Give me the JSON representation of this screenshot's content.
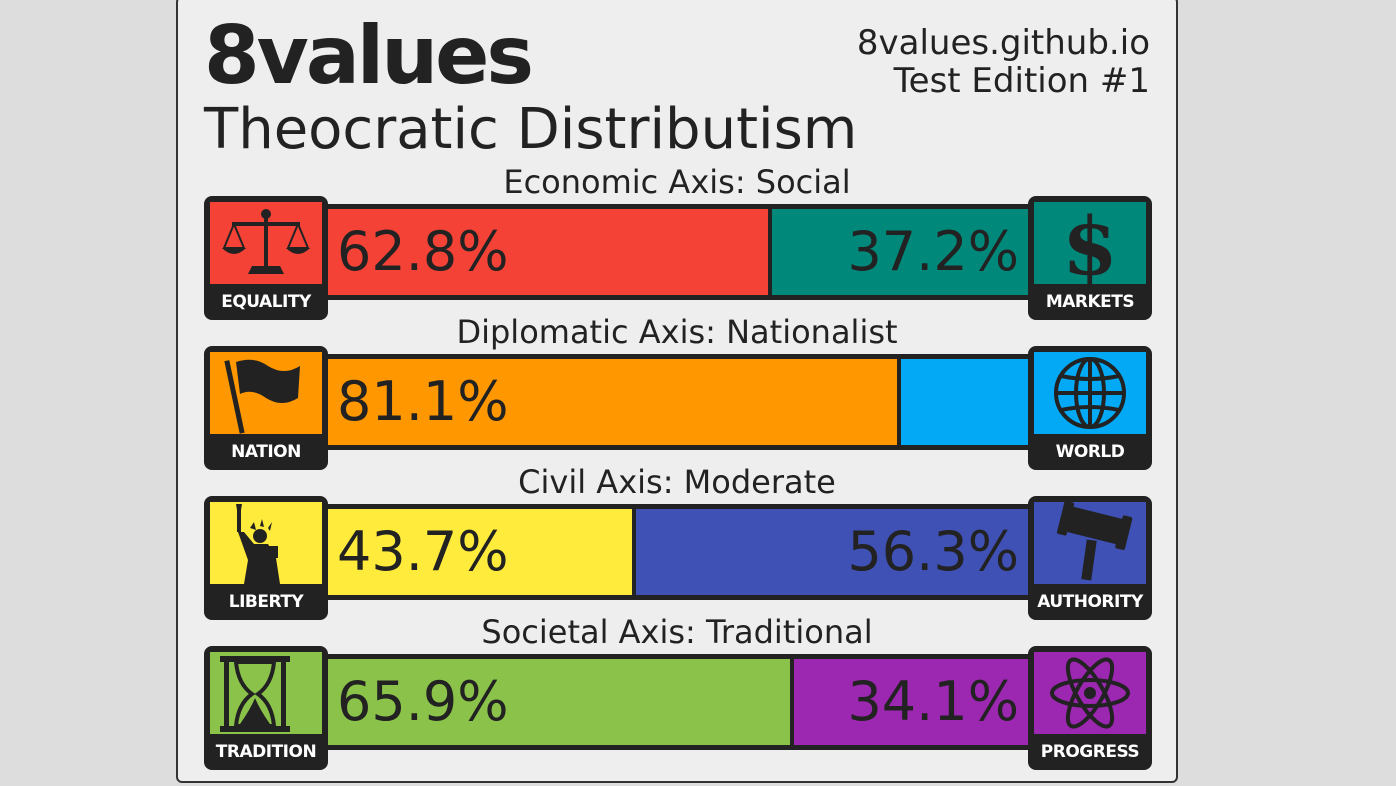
{
  "header": {
    "title": "8values",
    "site": "8values.github.io",
    "edition": "Test Edition #1",
    "ideology": "Theocratic Distributism"
  },
  "axes": [
    {
      "label": "Economic Axis: Social",
      "left": {
        "name": "EQUALITY",
        "value": "62.8%",
        "fraction": 0.628,
        "color": "#f44336",
        "icon": "scales-icon"
      },
      "right": {
        "name": "MARKETS",
        "value": "37.2%",
        "fraction": 0.372,
        "color": "#00897b",
        "icon": "dollar-icon"
      }
    },
    {
      "label": "Diplomatic Axis: Nationalist",
      "left": {
        "name": "NATION",
        "value": "81.1%",
        "fraction": 0.811,
        "color": "#ff9800",
        "icon": "flag-icon"
      },
      "right": {
        "name": "WORLD",
        "value": "",
        "fraction": 0.189,
        "color": "#03a9f4",
        "icon": "globe-icon"
      }
    },
    {
      "label": "Civil Axis: Moderate",
      "left": {
        "name": "LIBERTY",
        "value": "43.7%",
        "fraction": 0.437,
        "color": "#ffeb3b",
        "icon": "statue-of-liberty-icon"
      },
      "right": {
        "name": "AUTHORITY",
        "value": "56.3%",
        "fraction": 0.563,
        "color": "#3f51b5",
        "icon": "gavel-icon"
      }
    },
    {
      "label": "Societal Axis: Traditional",
      "left": {
        "name": "TRADITION",
        "value": "65.9%",
        "fraction": 0.659,
        "color": "#8bc34a",
        "icon": "hourglass-icon"
      },
      "right": {
        "name": "PROGRESS",
        "value": "34.1%",
        "fraction": 0.341,
        "color": "#9c27b0",
        "icon": "atom-icon"
      }
    }
  ]
}
